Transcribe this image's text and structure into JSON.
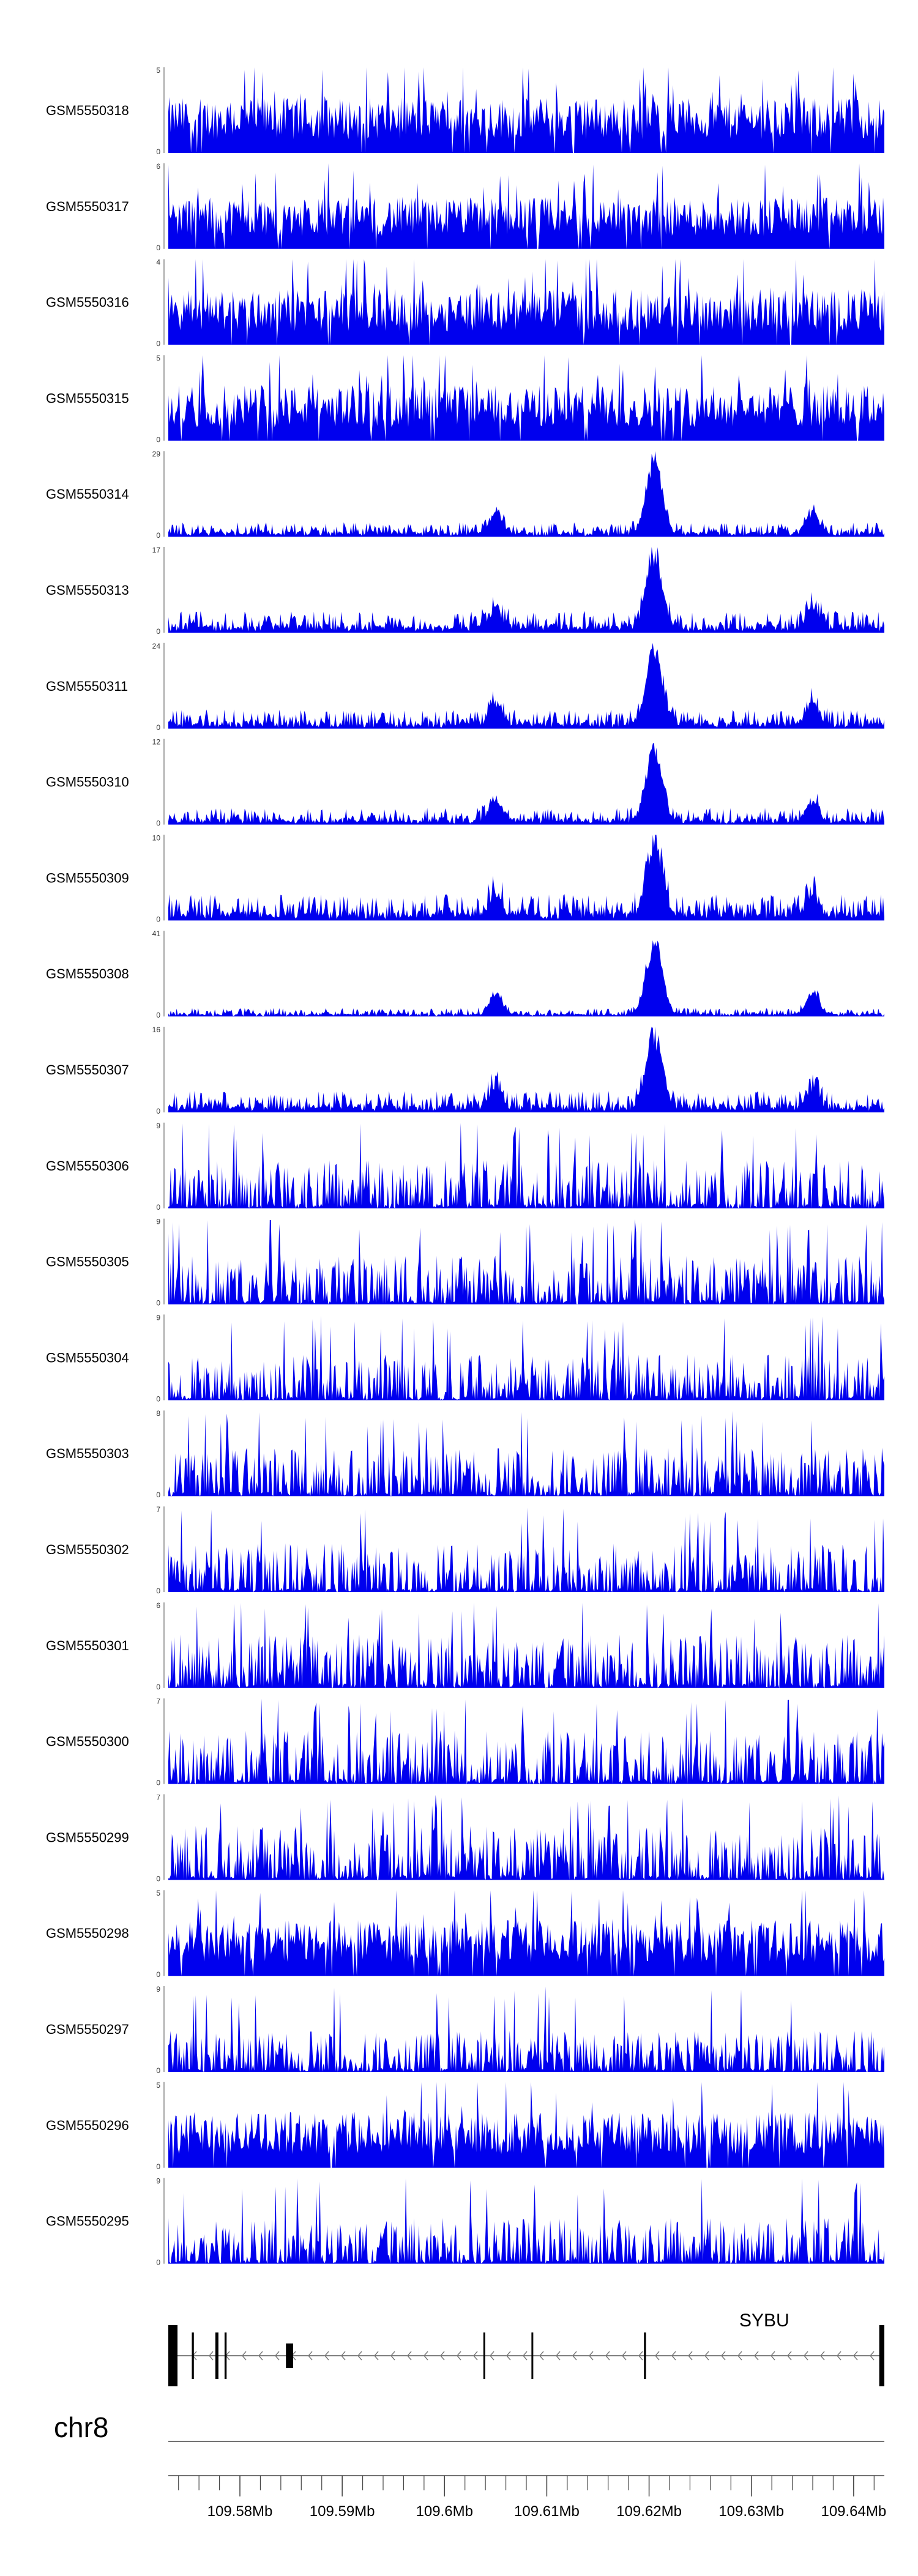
{
  "chart_data": {
    "type": "area",
    "region": {
      "chromosome": "chr8",
      "start": 109573000,
      "end": 109643000
    },
    "tracks": [
      {
        "name": "GSM5550318",
        "ymax": "5",
        "ymin": "0",
        "profile": "uniform",
        "level": 0.45
      },
      {
        "name": "GSM5550317",
        "ymax": "6",
        "ymin": "0",
        "profile": "uniform",
        "level": 0.42
      },
      {
        "name": "GSM5550316",
        "ymax": "4",
        "ymin": "0",
        "profile": "uniform",
        "level": 0.45
      },
      {
        "name": "GSM5550315",
        "ymax": "5",
        "ymin": "0",
        "profile": "uniform",
        "level": 0.45
      },
      {
        "name": "GSM5550314",
        "ymax": "29",
        "ymin": "0",
        "profile": "peaked",
        "level": 0.12
      },
      {
        "name": "GSM5550313",
        "ymax": "17",
        "ymin": "0",
        "profile": "peaked",
        "level": 0.18
      },
      {
        "name": "GSM5550311",
        "ymax": "24",
        "ymin": "0",
        "profile": "peaked",
        "level": 0.16
      },
      {
        "name": "GSM5550310",
        "ymax": "12",
        "ymin": "0",
        "profile": "peaked",
        "level": 0.14
      },
      {
        "name": "GSM5550309",
        "ymax": "10",
        "ymin": "0",
        "profile": "peaked",
        "level": 0.22
      },
      {
        "name": "GSM5550308",
        "ymax": "41",
        "ymin": "0",
        "profile": "peaked",
        "level": 0.07
      },
      {
        "name": "GSM5550307",
        "ymax": "16",
        "ymin": "0",
        "profile": "peaked",
        "level": 0.18
      },
      {
        "name": "GSM5550306",
        "ymax": "9",
        "ymin": "0",
        "profile": "sparse",
        "level": 0.38
      },
      {
        "name": "GSM5550305",
        "ymax": "9",
        "ymin": "0",
        "profile": "sparse",
        "level": 0.38
      },
      {
        "name": "GSM5550304",
        "ymax": "9",
        "ymin": "0",
        "profile": "sparse",
        "level": 0.36
      },
      {
        "name": "GSM5550303",
        "ymax": "8",
        "ymin": "0",
        "profile": "sparse",
        "level": 0.38
      },
      {
        "name": "GSM5550302",
        "ymax": "7",
        "ymin": "0",
        "profile": "sparse",
        "level": 0.38
      },
      {
        "name": "GSM5550301",
        "ymax": "6",
        "ymin": "0",
        "profile": "sparse",
        "level": 0.42
      },
      {
        "name": "GSM5550300",
        "ymax": "7",
        "ymin": "0",
        "profile": "sparse",
        "level": 0.42
      },
      {
        "name": "GSM5550299",
        "ymax": "7",
        "ymin": "0",
        "profile": "sparse",
        "level": 0.42
      },
      {
        "name": "GSM5550298",
        "ymax": "5",
        "ymin": "0",
        "profile": "uniform",
        "level": 0.45
      },
      {
        "name": "GSM5550297",
        "ymax": "9",
        "ymin": "0",
        "profile": "sparse",
        "level": 0.32
      },
      {
        "name": "GSM5550296",
        "ymax": "5",
        "ymin": "0",
        "profile": "uniform",
        "level": 0.45
      },
      {
        "name": "GSM5550295",
        "ymax": "9",
        "ymin": "0",
        "profile": "sparse",
        "level": 0.36
      }
    ],
    "gene": {
      "name": "SYBU",
      "strand": "-",
      "start": 109573000,
      "end": 109643000,
      "exons": [
        {
          "start": 109573000,
          "end": 109573900
        },
        {
          "start": 109575300,
          "end": 109575500
        },
        {
          "start": 109577600,
          "end": 109577900
        },
        {
          "start": 109578500,
          "end": 109578700
        },
        {
          "start": 109584500,
          "end": 109585200
        },
        {
          "start": 109603800,
          "end": 109603950
        },
        {
          "start": 109608500,
          "end": 109608650
        },
        {
          "start": 109619500,
          "end": 109619700
        },
        {
          "start": 109642500,
          "end": 109643000
        }
      ]
    },
    "axis": {
      "chromosome_label": "chr8",
      "ticks": [
        109580000,
        109590000,
        109600000,
        109610000,
        109620000,
        109630000,
        109640000
      ],
      "tick_labels": [
        "109.58Mb",
        "109.59Mb",
        "109.6Mb",
        "109.61Mb",
        "109.62Mb",
        "109.63Mb",
        "109.64Mb"
      ],
      "minor_tick_step": 2000
    },
    "peak_center": 109620500,
    "secondary_peaks": [
      109605000,
      109636000
    ],
    "colors": {
      "signal": "#0000ee",
      "axis": "#444444",
      "label": "#000000"
    }
  }
}
